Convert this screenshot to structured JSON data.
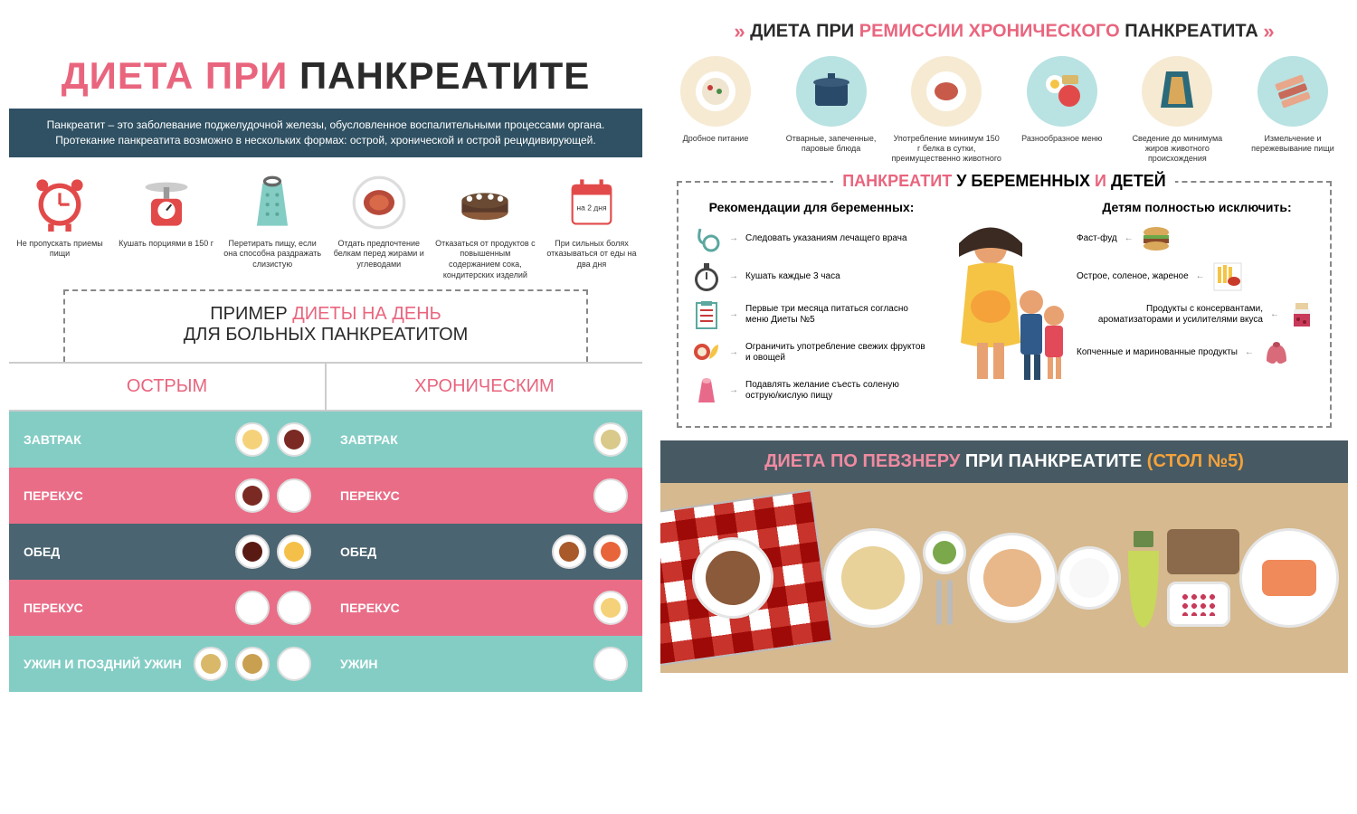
{
  "colors": {
    "pink": "#e9657e",
    "dark": "#2a2a2a",
    "darkbox": "#2f5163",
    "teal": "#84cdc5",
    "rose": "#ea6d87",
    "slate": "#4a6471",
    "slate2": "#475a63",
    "cream": "#f4e9d8",
    "wood": "#d6b98f",
    "orange": "#f5a23a",
    "circle_blue": "#b9e2e2",
    "circle_cream": "#f6ead3"
  },
  "left": {
    "title_pink": "ДИЕТА ПРИ",
    "title_dark": "ПАНКРЕАТИТЕ",
    "intro": "Панкреатит – это заболевание поджелудочной железы, обусловленное воспалительными процессами органа. Протекание панкреатита возможно в нескольких формах: острой, хронической и острой рецидивирующей.",
    "icons": [
      {
        "name": "clock-icon",
        "label": "Не пропускать приемы пищи",
        "color": "#e24a4a"
      },
      {
        "name": "scale-icon",
        "label": "Кушать порциями в 150 г",
        "color": "#e24a4a"
      },
      {
        "name": "grater-icon",
        "label": "Перетирать пищу, если она способна раздражать слизистую",
        "color": "#84cdc5"
      },
      {
        "name": "meat-icon",
        "label": "Отдать предпочтение белкам перед жирами и углеводами",
        "color": "#b84a3a"
      },
      {
        "name": "cake-icon",
        "label": "Отказаться от продуктов с повышенным содержанием сока, кондитерских изделий",
        "color": "#5a3a2a"
      },
      {
        "name": "calendar-icon",
        "label": "При сильных болях отказываться от еды на два дня",
        "color": "#e24a4a",
        "badge": "на 2 дня"
      }
    ],
    "example_line1_pre": "ПРИМЕР",
    "example_line1_accent": "ДИЕТЫ НА ДЕНЬ",
    "example_line2": "ДЛЯ БОЛЬНЫХ ПАНКРЕАТИТОМ",
    "col1": "ОСТРЫМ",
    "col2": "ХРОНИЧЕСКИМ",
    "rows": [
      {
        "label": "ЗАВТРАК",
        "bg": "#84cdc5",
        "foods_l": [
          {
            "c": "#f5d27a"
          },
          {
            "c": "#7a2a22"
          }
        ],
        "foods_r": [
          {
            "c": "#d9c98a"
          }
        ]
      },
      {
        "label": "ПЕРЕКУС",
        "bg": "#ea6d87",
        "foods_l": [
          {
            "c": "#7a2a22"
          },
          {
            "c": "#ffffff"
          }
        ],
        "foods_r": [
          {
            "c": "#ffffff"
          }
        ]
      },
      {
        "label": "ОБЕД",
        "bg": "#4a6471",
        "foods_l": [
          {
            "c": "#5a1a14"
          },
          {
            "c": "#f5c04a"
          }
        ],
        "foods_r": [
          {
            "c": "#a85a2a"
          },
          {
            "c": "#e8643a"
          }
        ]
      },
      {
        "label": "ПЕРЕКУС",
        "bg": "#ea6d87",
        "foods_l": [
          {
            "c": "#ffffff"
          },
          {
            "c": "#ffffff"
          }
        ],
        "foods_r": [
          {
            "c": "#f5d27a"
          }
        ]
      },
      {
        "label_l": "УЖИН И ПОЗДНИЙ УЖИН",
        "label_r": "УЖИН",
        "bg": "#84cdc5",
        "foods_l": [
          {
            "c": "#d9b86a"
          },
          {
            "c": "#c9a050"
          },
          {
            "c": "#ffffff"
          }
        ],
        "foods_r": [
          {
            "c": "#ffffff"
          }
        ]
      }
    ]
  },
  "right": {
    "remission_title_pre": "ДИЕТА ПРИ",
    "remission_title_mid": "РЕМИССИИ ХРОНИЧЕСКОГО",
    "remission_title_post": "ПАНКРЕАТИТА",
    "circles": [
      {
        "name": "porridge-icon",
        "bg": "#f6ead3",
        "label": "Дробное питание"
      },
      {
        "name": "pot-icon",
        "bg": "#b9e2e2",
        "label": "Отварные, запеченные, паровые блюда"
      },
      {
        "name": "protein-icon",
        "bg": "#f6ead3",
        "label": "Употребление минимум 150 г белка в сутки, преимущественно животного"
      },
      {
        "name": "eggs-icon",
        "bg": "#b9e2e2",
        "label": "Разнообразное меню"
      },
      {
        "name": "wrap-icon",
        "bg": "#f6ead3",
        "label": "Сведение до минимума жиров животного происхождения"
      },
      {
        "name": "bacon-icon",
        "bg": "#b9e2e2",
        "label": "Измельчение и пережевывание пищи"
      }
    ],
    "preg_title_1": "ПАНКРЕАТИТ",
    "preg_title_mid": "У БЕРЕМЕННЫХ",
    "preg_title_and": "И",
    "preg_title_end": "ДЕТЕЙ",
    "preg_sub_l": "Рекомендации для беременных:",
    "preg_sub_r": "Детям полностью исключить:",
    "preg_left": [
      {
        "icon": "stethoscope-icon",
        "text": "Следовать указаниям лечащего врача"
      },
      {
        "icon": "stopwatch-icon",
        "text": "Кушать каждые 3 часа"
      },
      {
        "icon": "clipboard-icon",
        "text": "Первые три месяца питаться согласно меню Диеты №5"
      },
      {
        "icon": "fruit-icon",
        "text": "Ограничить употребление свежих фруктов и овощей"
      },
      {
        "icon": "salt-icon",
        "text": "Подавлять желание съесть соленую острую/кислую пищу"
      }
    ],
    "preg_right": [
      {
        "icon": "burger-icon",
        "text": "Фаст-фуд"
      },
      {
        "icon": "fries-icon",
        "text": "Острое, соленое, жареное"
      },
      {
        "icon": "jam-icon",
        "text": "Продукты с консервантами, ароматизаторами и усилителями вкуса"
      },
      {
        "icon": "sausage-icon",
        "text": "Копченные и маринованные продукты"
      }
    ],
    "pevzner_1": "ДИЕТА ПО ПЕВЗНЕРУ",
    "pevzner_2": "ПРИ ПАНКРЕАТИТЕ",
    "pevzner_3": "(СТОЛ №5)"
  }
}
